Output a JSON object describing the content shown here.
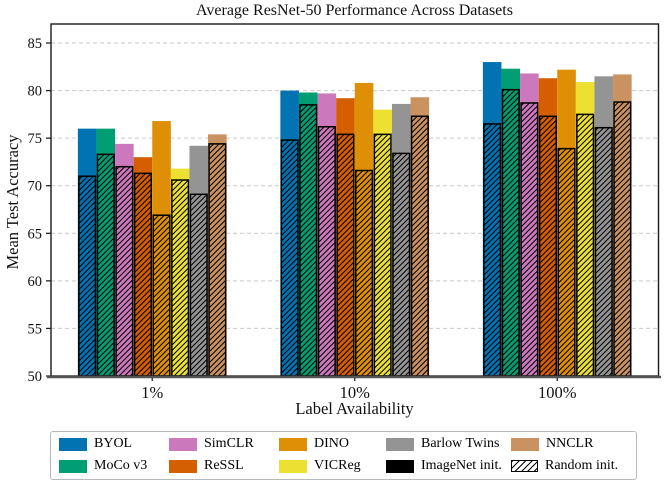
{
  "chart_data": {
    "type": "bar",
    "title": "Average ResNet-50 Performance Across Datasets",
    "xlabel": "Label Availability",
    "ylabel": "Mean Test Accuracy",
    "categories": [
      "1%",
      "10%",
      "100%"
    ],
    "ylim": [
      50,
      87
    ],
    "yticks": [
      50,
      55,
      60,
      65,
      70,
      75,
      80,
      85
    ],
    "grid": "horizontal-dashed",
    "legend_position": "bottom",
    "bar_style": "overlaid: solid bar = ImageNet init., hatched bar = Random init.",
    "series": [
      {
        "name": "BYOL",
        "color": "#0173B2",
        "imagenet_init": [
          76.0,
          80.0,
          83.0
        ],
        "random_init": [
          71.0,
          74.8,
          76.5
        ]
      },
      {
        "name": "MoCo v3",
        "color": "#029E73",
        "imagenet_init": [
          76.0,
          79.8,
          82.3
        ],
        "random_init": [
          73.3,
          78.5,
          80.1
        ]
      },
      {
        "name": "SimCLR",
        "color": "#CC78BC",
        "imagenet_init": [
          74.4,
          79.7,
          81.8
        ],
        "random_init": [
          72.0,
          76.2,
          78.7
        ]
      },
      {
        "name": "ReSSL",
        "color": "#D55E00",
        "imagenet_init": [
          73.0,
          79.2,
          81.3
        ],
        "random_init": [
          71.3,
          75.4,
          77.3
        ]
      },
      {
        "name": "DINO",
        "color": "#DE8F05",
        "imagenet_init": [
          76.8,
          80.8,
          82.2
        ],
        "random_init": [
          66.9,
          71.6,
          73.9
        ]
      },
      {
        "name": "VICReg",
        "color": "#ECE133",
        "imagenet_init": [
          71.8,
          78.0,
          80.9
        ],
        "random_init": [
          70.6,
          75.4,
          77.5
        ]
      },
      {
        "name": "Barlow Twins",
        "color": "#949494",
        "imagenet_init": [
          74.2,
          78.6,
          81.5
        ],
        "random_init": [
          69.1,
          73.4,
          76.1
        ]
      },
      {
        "name": "NNCLR",
        "color": "#CA9161",
        "imagenet_init": [
          75.4,
          79.3,
          81.7
        ],
        "random_init": [
          74.4,
          77.3,
          78.8
        ]
      }
    ]
  },
  "legend": {
    "columns": [
      [
        {
          "label": "BYOL",
          "swatch": "solid",
          "color": "#0173B2"
        },
        {
          "label": "MoCo v3",
          "swatch": "solid",
          "color": "#029E73"
        }
      ],
      [
        {
          "label": "SimCLR",
          "swatch": "solid",
          "color": "#CC78BC"
        },
        {
          "label": "ReSSL",
          "swatch": "solid",
          "color": "#D55E00"
        }
      ],
      [
        {
          "label": "DINO",
          "swatch": "solid",
          "color": "#DE8F05"
        },
        {
          "label": "VICReg",
          "swatch": "solid",
          "color": "#ECE133"
        }
      ],
      [
        {
          "label": "Barlow Twins",
          "swatch": "solid",
          "color": "#949494"
        },
        {
          "label": "ImageNet init.",
          "swatch": "solid",
          "color": "#000000"
        }
      ],
      [
        {
          "label": "NNCLR",
          "swatch": "solid",
          "color": "#CA9161"
        },
        {
          "label": "Random init.",
          "swatch": "hatch",
          "color": "#ffffff"
        }
      ]
    ]
  }
}
